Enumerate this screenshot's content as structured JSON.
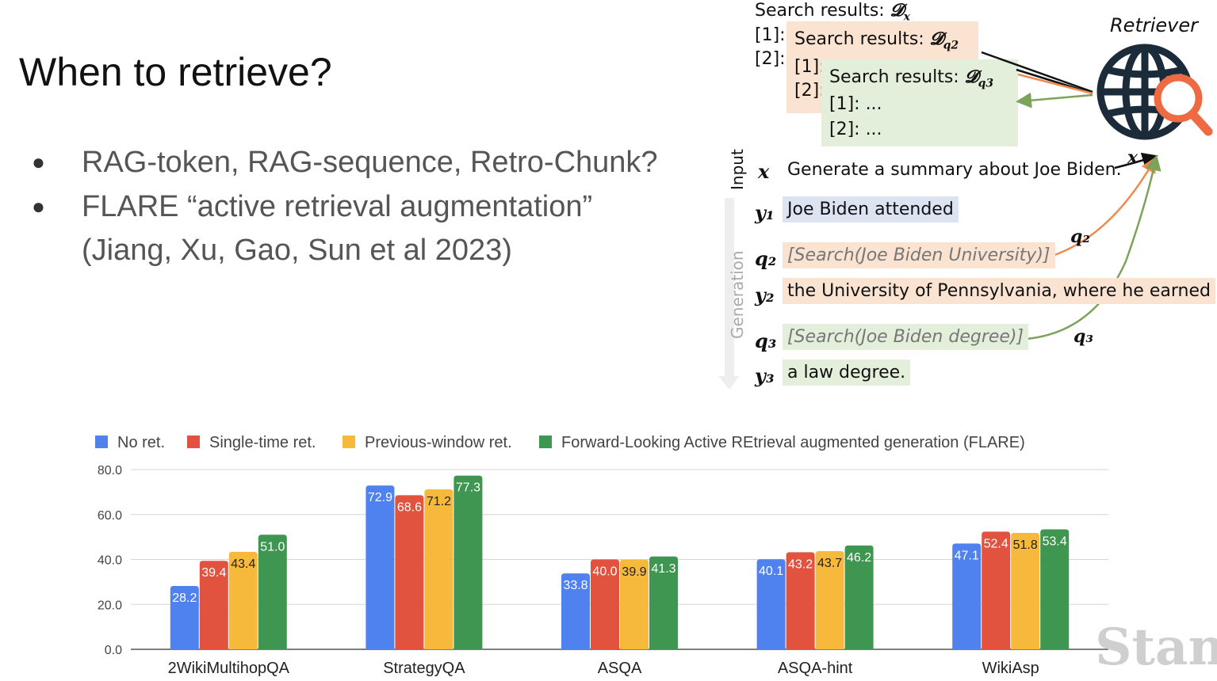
{
  "slide": {
    "title": "When to retrieve?",
    "bullets": [
      "RAG-token, RAG-sequence, Retro-Chunk?",
      "FLARE “active retrieval augmentation”",
      "(Jiang, Xu, Gao, Sun et al 2023)"
    ],
    "watermark": "Stan"
  },
  "diagram": {
    "search_results": [
      {
        "label": "Search results:",
        "symbol": "𝓓",
        "sub": "x"
      },
      {
        "label": "Search results:",
        "symbol": "𝓓",
        "sub": "q2"
      },
      {
        "label": "Search results:",
        "symbol": "𝓓",
        "sub": "q3"
      }
    ],
    "ref_1": "[1]:",
    "ref_2": "[2]:",
    "ref_1_dots": "[1]: ...",
    "ref_2_dots": "[2]: ...",
    "retriever_label": "Retriever",
    "input_label": "Input",
    "generation_label": "Generation",
    "rows": [
      {
        "var": "x",
        "text": "Generate a summary about Joe Biden."
      },
      {
        "var": "y₁",
        "text": "Joe Biden attended"
      },
      {
        "var": "q₂",
        "text": "[Search(Joe Biden University)]"
      },
      {
        "var": "y₂",
        "text": "the University of Pennsylvania, where he earned"
      },
      {
        "var": "q₃",
        "text": "[Search(Joe Biden degree)]"
      },
      {
        "var": "y₃",
        "text": "a law degree."
      }
    ],
    "arrow_labels": {
      "x": "x",
      "q2": "q₂",
      "q3": "q₃"
    },
    "colors": {
      "orange_bg": "#fbe3d2",
      "green_bg": "#e3eedb",
      "blue_bg": "#dce3f1",
      "orange_line": "#ee8a4e",
      "green_line": "#7da35a",
      "globe": "#1c2b3a",
      "magnifier": "#ee6a42"
    },
    "icons": [
      "globe-icon",
      "magnifier-icon"
    ]
  },
  "chart_data": {
    "type": "bar",
    "categories": [
      "2WikiMultihopQA",
      "StrategyQA",
      "ASQA",
      "ASQA-hint",
      "WikiAsp"
    ],
    "series": [
      {
        "name": "No ret.",
        "color": "#4f82ee",
        "values": [
          28.2,
          72.9,
          33.8,
          40.1,
          47.1
        ]
      },
      {
        "name": "Single-time ret.",
        "color": "#e1533e",
        "values": [
          39.4,
          68.6,
          40.0,
          43.2,
          52.4
        ]
      },
      {
        "name": "Previous-window ret.",
        "color": "#f6b93c",
        "values": [
          43.4,
          71.2,
          39.9,
          43.7,
          51.8
        ]
      },
      {
        "name": "Forward-Looking Active REtrieval augmented generation (FLARE)",
        "color": "#3f9651",
        "values": [
          51.0,
          77.3,
          41.3,
          46.2,
          53.4
        ]
      }
    ],
    "y_ticks": [
      "0.0",
      "20.0",
      "40.0",
      "60.0",
      "80.0"
    ],
    "ylim": [
      0,
      80
    ],
    "grid": true,
    "legend_position": "top"
  }
}
